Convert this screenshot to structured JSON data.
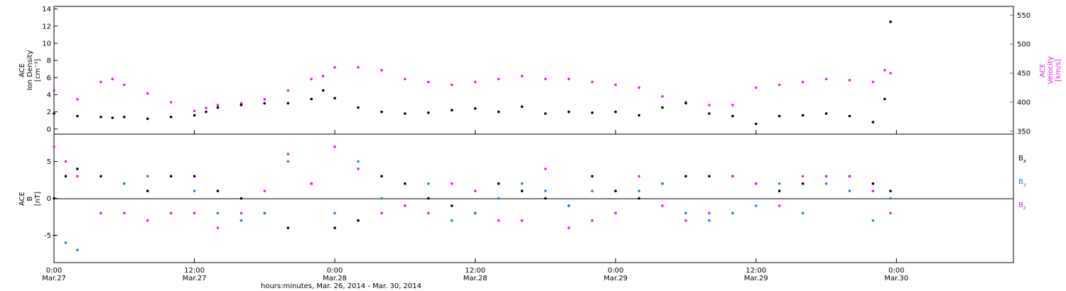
{
  "chart_data": [
    {
      "type": "scatter",
      "panel": "top",
      "ylabel_left": [
        "ACE",
        "Ion Density",
        "[cm⁻³]"
      ],
      "ylabel_right": [
        "ACE",
        "Velocity",
        "[km/s]"
      ],
      "yticks_left": [
        0,
        2,
        4,
        6,
        8,
        10,
        12,
        14
      ],
      "ylim_left": [
        -0.6,
        14.3
      ],
      "yticks_right": [
        350,
        400,
        450,
        500,
        550
      ],
      "ylim_right": [
        345,
        565
      ],
      "series": [
        {
          "name": "",
          "axis": "left",
          "color": "#000000",
          "x_hours": [
            0,
            2,
            4,
            5,
            6,
            8,
            10,
            12,
            13,
            14,
            16,
            18,
            20,
            22,
            23,
            24,
            26,
            28,
            30,
            32,
            34,
            36,
            38,
            40,
            42,
            44,
            46,
            48,
            50,
            52,
            54,
            56,
            58,
            60,
            62,
            64,
            66,
            68,
            70,
            71,
            71.5
          ],
          "values": [
            1.8,
            1.5,
            1.4,
            1.3,
            1.4,
            1.2,
            1.4,
            1.6,
            2.0,
            2.5,
            2.8,
            3.0,
            3.0,
            3.5,
            4.5,
            3.6,
            2.5,
            2.0,
            1.8,
            1.9,
            2.2,
            2.4,
            2.0,
            2.6,
            1.8,
            2.0,
            1.9,
            2.0,
            1.6,
            2.5,
            3.0,
            1.8,
            1.5,
            0.6,
            1.5,
            1.6,
            1.8,
            1.5,
            0.8,
            3.5,
            12.5
          ]
        },
        {
          "name": "",
          "axis": "right",
          "color": "#e020e0",
          "x_hours": [
            0,
            2,
            4,
            5,
            6,
            8,
            10,
            12,
            13,
            14,
            16,
            18,
            20,
            22,
            23,
            24,
            26,
            28,
            30,
            32,
            34,
            36,
            38,
            40,
            42,
            44,
            46,
            48,
            50,
            52,
            54,
            56,
            58,
            60,
            62,
            64,
            66,
            68,
            70,
            71,
            71.5
          ],
          "values": [
            420,
            405,
            435,
            440,
            430,
            415,
            400,
            385,
            390,
            395,
            398,
            405,
            420,
            440,
            445,
            460,
            460,
            455,
            440,
            435,
            430,
            435,
            440,
            445,
            440,
            440,
            435,
            430,
            425,
            410,
            400,
            395,
            395,
            425,
            430,
            435,
            440,
            438,
            435,
            455,
            450
          ]
        }
      ]
    },
    {
      "type": "scatter",
      "panel": "bottom",
      "ylabel_left": [
        "ACE",
        "B",
        "[nT]"
      ],
      "yticks_left": [
        -5,
        0,
        5
      ],
      "ylim_left": [
        -8.7,
        8.7
      ],
      "zero_line": true,
      "series": [
        {
          "name": "Bx",
          "color": "#000000",
          "x_hours": [
            0,
            1,
            2,
            4,
            6,
            8,
            10,
            12,
            14,
            16,
            18,
            20,
            22,
            24,
            26,
            28,
            30,
            32,
            34,
            36,
            38,
            40,
            42,
            44,
            46,
            48,
            50,
            52,
            54,
            56,
            58,
            60,
            62,
            64,
            66,
            68,
            70,
            71.5
          ],
          "values": [
            0,
            3,
            4,
            3,
            2,
            1,
            3,
            3,
            1,
            0,
            -2,
            -4,
            2,
            -4,
            -3,
            3,
            2,
            0,
            -1,
            -2,
            2,
            1,
            0,
            -1,
            3,
            1,
            0,
            2,
            3,
            3,
            3,
            2,
            1,
            2,
            3,
            3,
            2,
            1
          ]
        },
        {
          "name": "By",
          "color": "#2080e0",
          "x_hours": [
            0,
            1,
            2,
            4,
            6,
            8,
            10,
            12,
            14,
            16,
            18,
            20,
            22,
            24,
            26,
            28,
            30,
            32,
            34,
            36,
            38,
            40,
            42,
            44,
            46,
            48,
            50,
            52,
            54,
            56,
            58,
            60,
            62,
            64,
            66,
            68,
            70,
            71.5
          ],
          "values": [
            -5,
            -6,
            -7,
            -2,
            2,
            3,
            -2,
            1,
            -2,
            -3,
            -2,
            5,
            2,
            -2,
            5,
            0,
            -1,
            2,
            -3,
            -2,
            0,
            2,
            1,
            -1,
            1,
            -2,
            1,
            2,
            -2,
            -3,
            -2,
            -1,
            2,
            -2,
            2,
            1,
            -3,
            0
          ]
        },
        {
          "name": "Bz",
          "color": "#e020e0",
          "x_hours": [
            0,
            1,
            2,
            4,
            6,
            8,
            10,
            12,
            14,
            16,
            18,
            20,
            22,
            24,
            26,
            28,
            30,
            32,
            34,
            36,
            38,
            40,
            42,
            44,
            46,
            48,
            50,
            52,
            54,
            56,
            58,
            60,
            62,
            64,
            66,
            68,
            70,
            71.5
          ],
          "values": [
            7,
            5,
            3,
            -2,
            -2,
            -3,
            -2,
            -2,
            -4,
            -2,
            1,
            6,
            2,
            7,
            4,
            -2,
            -1,
            -2,
            2,
            1,
            -3,
            -3,
            4,
            -4,
            -3,
            -2,
            3,
            -1,
            -3,
            -2,
            3,
            2,
            -1,
            3,
            3,
            3,
            1,
            -2
          ]
        }
      ]
    }
  ],
  "x_axis": {
    "ticks": [
      {
        "hour": 0,
        "time": "0:00",
        "date": "Mar.27"
      },
      {
        "hour": 12,
        "time": "12:00",
        "date": "Mar.27"
      },
      {
        "hour": 24,
        "time": "0:00",
        "date": "Mar.28"
      },
      {
        "hour": 36,
        "time": "12:00",
        "date": "Mar.28"
      },
      {
        "hour": 48,
        "time": "0:00",
        "date": "Mar.29"
      },
      {
        "hour": 60,
        "time": "12:00",
        "date": "Mar.29"
      },
      {
        "hour": 72,
        "time": "0:00",
        "date": "Mar.30"
      }
    ],
    "xlim_hours": [
      0,
      82
    ],
    "label": "hours:minutes, Mar. 26, 2014 - Mar. 30, 2014"
  },
  "legend": {
    "placement": "right",
    "entries": [
      {
        "base": "B",
        "sub": "x",
        "color": "#000000"
      },
      {
        "base": "B",
        "sub": "y",
        "color": "#2080e0"
      },
      {
        "base": "B",
        "sub": "z",
        "color": "#e020e0"
      }
    ]
  }
}
